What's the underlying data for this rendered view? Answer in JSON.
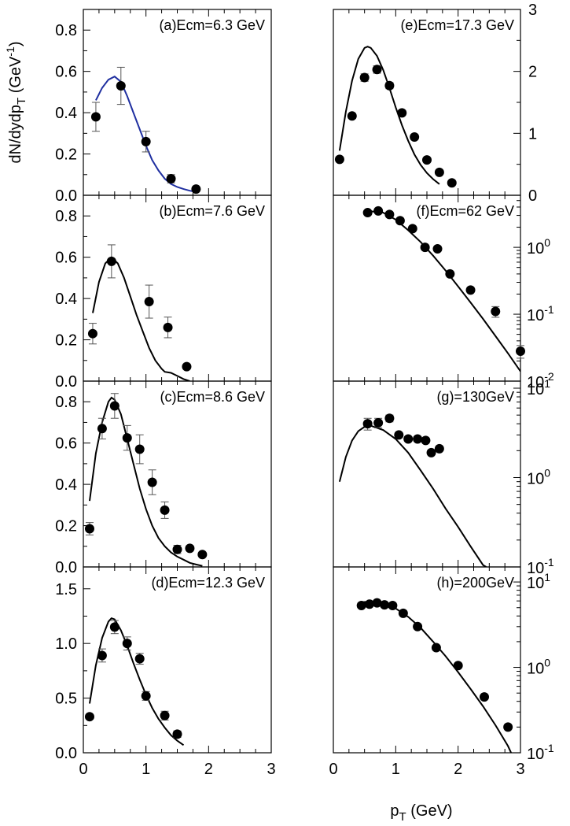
{
  "figure": {
    "ylabel": "dN/dydp",
    "ylabel_sub": "T",
    "ylabel_unit_open": " (GeV",
    "ylabel_unit_exp": "-1",
    "ylabel_unit_close": ")",
    "xlabel_main": "p",
    "xlabel_sub": "T",
    "xlabel_unit": " (GeV)"
  },
  "chart_data": [
    {
      "id": "a",
      "type": "scatter",
      "title": "(a)Ecm=6.3 GeV",
      "yscale": "linear",
      "xlim": [
        0,
        3
      ],
      "ylim": [
        0,
        0.9
      ],
      "yticks": [
        0,
        0.2,
        0.4,
        0.6,
        0.8
      ],
      "ytick_labels": [
        "0.0",
        "0.2",
        "0.4",
        "0.6",
        "0.8"
      ],
      "x_tick_labels": [],
      "curve_color": "#1f2fa0",
      "points": [
        [
          0.2,
          0.38,
          0.07
        ],
        [
          0.6,
          0.53,
          0.09
        ],
        [
          1.0,
          0.26,
          0.05
        ],
        [
          1.4,
          0.08,
          0.02
        ],
        [
          1.8,
          0.03,
          0.005
        ]
      ],
      "curve": [
        [
          0.2,
          0.46
        ],
        [
          0.3,
          0.52
        ],
        [
          0.4,
          0.56
        ],
        [
          0.5,
          0.575
        ],
        [
          0.6,
          0.55
        ],
        [
          0.7,
          0.48
        ],
        [
          0.8,
          0.4
        ],
        [
          0.9,
          0.32
        ],
        [
          1.0,
          0.24
        ],
        [
          1.1,
          0.17
        ],
        [
          1.2,
          0.12
        ],
        [
          1.3,
          0.08
        ],
        [
          1.4,
          0.055
        ],
        [
          1.5,
          0.04
        ],
        [
          1.6,
          0.03
        ],
        [
          1.7,
          0.022
        ],
        [
          1.8,
          0.016
        ]
      ]
    },
    {
      "id": "b",
      "type": "scatter",
      "title": "(b)Ecm=7.6 GeV",
      "yscale": "linear",
      "xlim": [
        0,
        3
      ],
      "ylim": [
        0,
        0.9
      ],
      "yticks": [
        0,
        0.2,
        0.4,
        0.6,
        0.8
      ],
      "ytick_labels": [
        "0.0",
        "0.2",
        "0.4",
        "0.6",
        "0.8"
      ],
      "x_tick_labels": [],
      "curve_color": "#000000",
      "points": [
        [
          0.15,
          0.23,
          0.05
        ],
        [
          0.45,
          0.58,
          0.08
        ],
        [
          1.05,
          0.385,
          0.08
        ],
        [
          1.35,
          0.26,
          0.05
        ],
        [
          1.65,
          0.07,
          0.01
        ]
      ],
      "curve": [
        [
          0.15,
          0.33
        ],
        [
          0.25,
          0.48
        ],
        [
          0.35,
          0.57
        ],
        [
          0.45,
          0.6
        ],
        [
          0.55,
          0.57
        ],
        [
          0.65,
          0.5
        ],
        [
          0.75,
          0.41
        ],
        [
          0.85,
          0.32
        ],
        [
          0.95,
          0.24
        ],
        [
          1.05,
          0.16
        ],
        [
          1.15,
          0.1
        ],
        [
          1.25,
          0.06
        ],
        [
          1.3,
          0.045
        ],
        [
          1.4,
          0.04
        ],
        [
          1.5,
          0.025
        ],
        [
          1.6,
          0.01
        ],
        [
          1.7,
          0.0
        ]
      ]
    },
    {
      "id": "c",
      "type": "scatter",
      "title": "(c)Ecm=8.6 GeV",
      "yscale": "linear",
      "xlim": [
        0,
        3
      ],
      "ylim": [
        0,
        0.9
      ],
      "yticks": [
        0,
        0.2,
        0.4,
        0.6,
        0.8
      ],
      "ytick_labels": [
        "0.0",
        "0.2",
        "0.4",
        "0.6",
        "0.8"
      ],
      "x_tick_labels": [],
      "curve_color": "#000000",
      "points": [
        [
          0.1,
          0.185,
          0.03
        ],
        [
          0.3,
          0.67,
          0.05
        ],
        [
          0.5,
          0.78,
          0.06
        ],
        [
          0.7,
          0.625,
          0.06
        ],
        [
          0.9,
          0.57,
          0.07
        ],
        [
          1.1,
          0.41,
          0.06
        ],
        [
          1.3,
          0.275,
          0.04
        ],
        [
          1.5,
          0.085,
          0.02
        ],
        [
          1.7,
          0.09,
          0.01
        ],
        [
          1.9,
          0.06,
          0.01
        ]
      ],
      "curve": [
        [
          0.1,
          0.32
        ],
        [
          0.2,
          0.55
        ],
        [
          0.3,
          0.7
        ],
        [
          0.4,
          0.8
        ],
        [
          0.45,
          0.82
        ],
        [
          0.5,
          0.81
        ],
        [
          0.6,
          0.74
        ],
        [
          0.7,
          0.62
        ],
        [
          0.8,
          0.5
        ],
        [
          0.9,
          0.38
        ],
        [
          1.0,
          0.28
        ],
        [
          1.1,
          0.2
        ],
        [
          1.2,
          0.14
        ],
        [
          1.3,
          0.1
        ],
        [
          1.4,
          0.07
        ],
        [
          1.5,
          0.05
        ],
        [
          1.6,
          0.035
        ],
        [
          1.7,
          0.02
        ],
        [
          1.8,
          0.012
        ],
        [
          1.9,
          0.005
        ]
      ]
    },
    {
      "id": "d",
      "type": "scatter",
      "title": "(d)Ecm=12.3 GeV",
      "yscale": "linear",
      "xlim": [
        0,
        3
      ],
      "ylim": [
        0,
        1.7
      ],
      "yticks": [
        0,
        0.5,
        1.0,
        1.5
      ],
      "ytick_labels": [
        "0.0",
        "0.5",
        "1.0",
        "1.5"
      ],
      "x_tick_labels": [
        "0",
        "1",
        "2",
        "3"
      ],
      "curve_color": "#000000",
      "points": [
        [
          0.1,
          0.33,
          0.02
        ],
        [
          0.3,
          0.89,
          0.06
        ],
        [
          0.5,
          1.15,
          0.06
        ],
        [
          0.7,
          1.0,
          0.06
        ],
        [
          0.9,
          0.86,
          0.05
        ],
        [
          1.0,
          0.52,
          0.04
        ],
        [
          1.3,
          0.34,
          0.04
        ],
        [
          1.5,
          0.17,
          0.03
        ]
      ],
      "curve": [
        [
          0.1,
          0.45
        ],
        [
          0.2,
          0.8
        ],
        [
          0.3,
          1.05
        ],
        [
          0.4,
          1.2
        ],
        [
          0.45,
          1.23
        ],
        [
          0.5,
          1.22
        ],
        [
          0.6,
          1.12
        ],
        [
          0.7,
          0.98
        ],
        [
          0.8,
          0.82
        ],
        [
          0.9,
          0.67
        ],
        [
          1.0,
          0.53
        ],
        [
          1.1,
          0.41
        ],
        [
          1.2,
          0.31
        ],
        [
          1.3,
          0.23
        ],
        [
          1.4,
          0.16
        ],
        [
          1.5,
          0.11
        ],
        [
          1.6,
          0.07
        ]
      ]
    },
    {
      "id": "e",
      "type": "scatter",
      "title": "(e)Ecm=17.3 GeV",
      "yscale": "linear",
      "xlim": [
        0,
        3
      ],
      "ylim": [
        0,
        3
      ],
      "yticks": [
        0,
        1,
        2,
        3
      ],
      "ytick_labels": [
        "0",
        "1",
        "2",
        "3"
      ],
      "x_tick_labels": [],
      "curve_color": "#000000",
      "points": [
        [
          0.1,
          0.58,
          0.02
        ],
        [
          0.3,
          1.28,
          0.04
        ],
        [
          0.5,
          1.9,
          0.06
        ],
        [
          0.7,
          2.03,
          0.06
        ],
        [
          0.9,
          1.77,
          0.05
        ],
        [
          1.1,
          1.33,
          0.04
        ],
        [
          1.3,
          0.94,
          0.03
        ],
        [
          1.5,
          0.57,
          0.02
        ],
        [
          1.7,
          0.37,
          0.02
        ],
        [
          1.9,
          0.2,
          0.01
        ]
      ],
      "curve": [
        [
          0.1,
          0.72
        ],
        [
          0.2,
          1.35
        ],
        [
          0.3,
          1.85
        ],
        [
          0.4,
          2.2
        ],
        [
          0.5,
          2.38
        ],
        [
          0.55,
          2.4
        ],
        [
          0.6,
          2.38
        ],
        [
          0.7,
          2.25
        ],
        [
          0.8,
          2.02
        ],
        [
          0.9,
          1.73
        ],
        [
          1.0,
          1.42
        ],
        [
          1.1,
          1.13
        ],
        [
          1.2,
          0.88
        ],
        [
          1.3,
          0.66
        ],
        [
          1.4,
          0.49
        ],
        [
          1.5,
          0.36
        ],
        [
          1.6,
          0.26
        ],
        [
          1.7,
          0.18
        ]
      ]
    },
    {
      "id": "f",
      "type": "scatter",
      "title": "(f)Ecm=62 GeV",
      "yscale": "log",
      "xlim": [
        0,
        3
      ],
      "ylim": [
        0.01,
        6
      ],
      "yticks": [
        0.01,
        0.1,
        1
      ],
      "ytick_labels": [
        [
          "10",
          "-2"
        ],
        [
          "10",
          "-1"
        ],
        [
          "10",
          "0"
        ]
      ],
      "x_tick_labels": [],
      "curve_color": "#000000",
      "points": [
        [
          0.55,
          3.3,
          0
        ],
        [
          0.72,
          3.5,
          0
        ],
        [
          0.9,
          3.1,
          0
        ],
        [
          1.07,
          2.5,
          0
        ],
        [
          1.27,
          1.9,
          0
        ],
        [
          1.47,
          1.0,
          0
        ],
        [
          1.67,
          0.95,
          0
        ],
        [
          1.87,
          0.4,
          0
        ],
        [
          2.2,
          0.23,
          0
        ],
        [
          2.6,
          0.11,
          0.02
        ],
        [
          3.0,
          0.028,
          0.006
        ]
      ],
      "curve": [
        [
          0.55,
          3.5
        ],
        [
          0.8,
          3.3
        ],
        [
          1.0,
          2.6
        ],
        [
          1.2,
          1.8
        ],
        [
          1.4,
          1.2
        ],
        [
          1.6,
          0.75
        ],
        [
          1.8,
          0.45
        ],
        [
          2.0,
          0.26
        ],
        [
          2.2,
          0.15
        ],
        [
          2.4,
          0.085
        ],
        [
          2.6,
          0.047
        ],
        [
          2.8,
          0.026
        ],
        [
          3.0,
          0.014
        ]
      ]
    },
    {
      "id": "g",
      "type": "scatter",
      "title": "(g)=130GeV",
      "yscale": "log",
      "xlim": [
        0,
        3
      ],
      "ylim": [
        0.1,
        12
      ],
      "yticks": [
        0.1,
        1,
        10
      ],
      "ytick_labels": [
        [
          "10",
          "-1"
        ],
        [
          "10",
          "0"
        ],
        [
          "10",
          "1"
        ]
      ],
      "x_tick_labels": [],
      "curve_color": "#000000",
      "points": [
        [
          0.55,
          4.0,
          0.6
        ],
        [
          0.72,
          4.1,
          0.5
        ],
        [
          0.9,
          4.6,
          0.4
        ],
        [
          1.05,
          3.0,
          0
        ],
        [
          1.2,
          2.7,
          0
        ],
        [
          1.35,
          2.7,
          0
        ],
        [
          1.48,
          2.6,
          0
        ],
        [
          1.57,
          1.9,
          0
        ],
        [
          1.7,
          2.1,
          0
        ]
      ],
      "curve": [
        [
          0.1,
          0.9
        ],
        [
          0.2,
          1.7
        ],
        [
          0.3,
          2.6
        ],
        [
          0.4,
          3.3
        ],
        [
          0.5,
          3.7
        ],
        [
          0.6,
          3.8
        ],
        [
          0.8,
          3.4
        ],
        [
          1.0,
          2.7
        ],
        [
          1.2,
          1.9
        ],
        [
          1.4,
          1.2
        ],
        [
          1.6,
          0.75
        ],
        [
          1.8,
          0.45
        ],
        [
          2.0,
          0.28
        ],
        [
          2.2,
          0.17
        ],
        [
          2.4,
          0.105
        ],
        [
          2.45,
          0.1
        ]
      ]
    },
    {
      "id": "h",
      "type": "scatter",
      "title": "(h)=200GeV",
      "yscale": "log",
      "xlim": [
        0,
        3
      ],
      "ylim": [
        0.1,
        15
      ],
      "yticks": [
        0.1,
        1,
        10
      ],
      "ytick_labels": [
        [
          "10",
          "-1"
        ],
        [
          "10",
          "0"
        ],
        [
          "10",
          "1"
        ]
      ],
      "x_tick_labels": [
        "0",
        "1",
        "2",
        "3"
      ],
      "curve_color": "#000000",
      "points": [
        [
          0.45,
          5.3,
          0
        ],
        [
          0.58,
          5.5,
          0
        ],
        [
          0.7,
          5.7,
          0
        ],
        [
          0.82,
          5.4,
          0
        ],
        [
          0.95,
          5.3,
          0
        ],
        [
          1.12,
          4.3,
          0
        ],
        [
          1.35,
          3.0,
          0
        ],
        [
          1.65,
          1.7,
          0
        ],
        [
          2.0,
          1.05,
          0
        ],
        [
          2.42,
          0.45,
          0
        ],
        [
          2.8,
          0.2,
          0
        ]
      ],
      "curve": [
        [
          0.45,
          5.8
        ],
        [
          0.6,
          5.9
        ],
        [
          0.8,
          5.7
        ],
        [
          1.0,
          4.9
        ],
        [
          1.2,
          3.9
        ],
        [
          1.4,
          2.9
        ],
        [
          1.6,
          2.0
        ],
        [
          1.8,
          1.35
        ],
        [
          2.0,
          0.88
        ],
        [
          2.2,
          0.56
        ],
        [
          2.4,
          0.35
        ],
        [
          2.6,
          0.21
        ],
        [
          2.8,
          0.12
        ],
        [
          2.85,
          0.1
        ]
      ]
    }
  ]
}
